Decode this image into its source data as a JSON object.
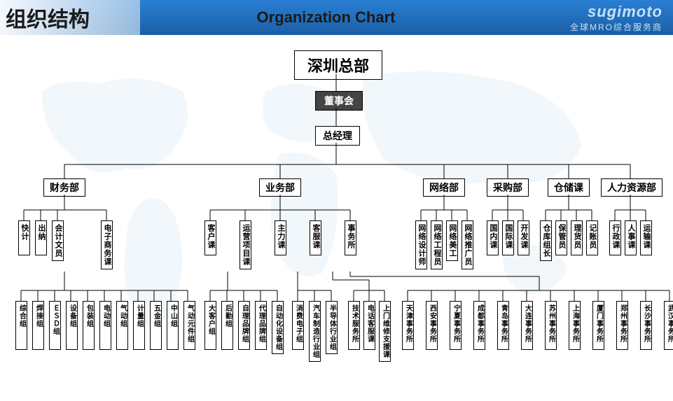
{
  "header": {
    "title_zh": "组织结构",
    "title_en": "Organization  Chart",
    "logo": "sugimoto",
    "logo_sub": "全球MRO综合服务商"
  },
  "chart": {
    "hq": "深圳总部",
    "board": "董事会",
    "gm": "总经理",
    "depts": [
      "财务部",
      "业务部",
      "网络部",
      "采购部",
      "仓储课",
      "人力资源部"
    ],
    "level5": {
      "finance": [
        "快计",
        "出纳",
        "会计文员",
        "电子商务课"
      ],
      "business": [
        "客户课",
        "运营项目课",
        "主力课",
        "客服课",
        "事务所"
      ],
      "network": [
        "网络设计师",
        "网络工程员",
        "网络美工",
        "网络推广员"
      ],
      "purchase": [
        "国内课",
        "国际课",
        "开发课"
      ],
      "warehouse": [
        "仓库组长",
        "保管员",
        "理货员",
        "记账员"
      ],
      "hr": [
        "行政课",
        "人事课",
        "运输课"
      ]
    },
    "level6": {
      "finance": [
        "综合组",
        "焊接组",
        "ＥＳＤ组",
        "设备组",
        "包装组",
        "电动组",
        "气动组",
        "计量组",
        "五金组",
        "中山组",
        "气动元件组"
      ],
      "biz1": [
        "大客户组",
        "后勤组",
        "自理品牌组",
        "代理品牌组",
        "自动化设备组"
      ],
      "biz2": [
        "消费电子组",
        "汽车制造行业组",
        "半导体行业组"
      ],
      "biz3": [
        "技术服务所",
        "电话客服课",
        "上门维修支援课"
      ],
      "offices": [
        "天津事务所",
        "西安事务所",
        "宁夏事务所",
        "成都事务所",
        "青岛事务所",
        "大连事务所",
        "苏州事务所",
        "上海事务所",
        "厦门事务所",
        "郑州事务所",
        "长沙事务所",
        "武汉事务所"
      ]
    }
  },
  "style": {
    "bg": "#ffffff",
    "header_gradient": [
      "#2a7fd4",
      "#1a5fa4"
    ],
    "map_color": "#b8d4e8",
    "box_border": "#000000",
    "board_bg": "#444444",
    "font": "Microsoft YaHei"
  }
}
